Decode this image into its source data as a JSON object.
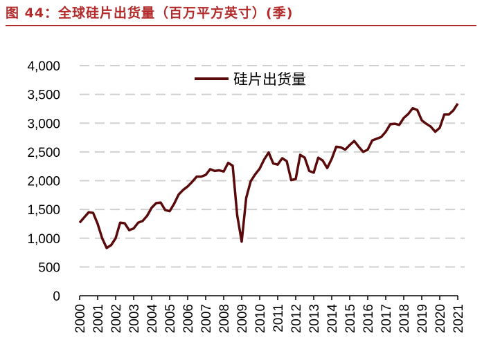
{
  "title": "图 44：全球硅片出货量（百万平方英寸）(季)",
  "colors": {
    "title": "#b22a2a",
    "line": "#5a0a0a",
    "grid": "#d0d0d0"
  },
  "chart_data": {
    "type": "line",
    "title": "",
    "xlabel": "",
    "ylabel": "",
    "ylim": [
      0,
      4000
    ],
    "yticks": [
      0,
      500,
      1000,
      1500,
      2000,
      2500,
      3000,
      3500,
      4000
    ],
    "ytick_labels": [
      "0",
      "500",
      "1,000",
      "1,500",
      "2,000",
      "2,500",
      "3,000",
      "3,500",
      "4,000"
    ],
    "xtick_labels": [
      "2000",
      "2001",
      "2002",
      "2003",
      "2004",
      "2005",
      "2006",
      "2007",
      "2008",
      "2009",
      "2010",
      "2011",
      "2012",
      "2013",
      "2014",
      "2015",
      "2016",
      "2017",
      "2018",
      "2019",
      "2020",
      "2021"
    ],
    "grid": "horizontal dashed",
    "legend": "top-center",
    "frequency": "quarterly, 2000Q1-2021Q1",
    "series": [
      {
        "name": "硅片出货量",
        "values": [
          1270,
          1360,
          1450,
          1440,
          1250,
          1000,
          830,
          880,
          1000,
          1270,
          1260,
          1140,
          1170,
          1270,
          1300,
          1390,
          1530,
          1610,
          1620,
          1490,
          1470,
          1600,
          1760,
          1840,
          1900,
          1980,
          2070,
          2070,
          2100,
          2200,
          2170,
          2180,
          2160,
          2310,
          2260,
          1400,
          940,
          1700,
          1990,
          2110,
          2210,
          2370,
          2490,
          2300,
          2280,
          2390,
          2340,
          2010,
          2030,
          2450,
          2400,
          2170,
          2140,
          2400,
          2350,
          2220,
          2380,
          2590,
          2580,
          2540,
          2620,
          2690,
          2590,
          2500,
          2540,
          2700,
          2730,
          2760,
          2850,
          2980,
          2990,
          2970,
          3090,
          3160,
          3260,
          3230,
          3050,
          2990,
          2940,
          2850,
          2920,
          3150,
          3150,
          3220,
          3340
        ]
      }
    ]
  }
}
